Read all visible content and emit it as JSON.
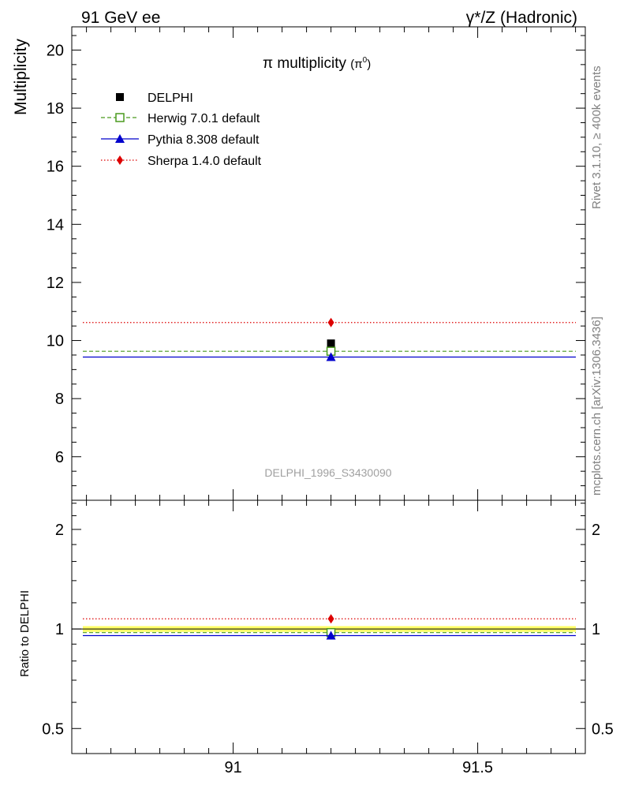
{
  "header": {
    "left": "91 GeV ee",
    "right": "γ*/Z (Hadronic)"
  },
  "side_text": {
    "top": "Rivet 3.1.10, ≥ 400k events",
    "bottom": "mcplots.cern.ch [arXiv:1306.3436]"
  },
  "watermark": "DELPHI_1996_S3430090",
  "colors": {
    "data": "#000000",
    "herwig": "#4a9a1e",
    "pythia": "#0000cc",
    "sherpa": "#dd0000",
    "band": "#ffff66"
  },
  "chart_data": [
    {
      "type": "scatter",
      "panel": "main",
      "title": "π multiplicity",
      "title_suffix": "(π",
      "title_sup": "0",
      "title_close": ")",
      "ylabel": "Multiplicity",
      "xlim": [
        90.67,
        91.72
      ],
      "ylim": [
        4.5,
        20.8
      ],
      "yticks": [
        6,
        8,
        10,
        12,
        14,
        16,
        18,
        20
      ],
      "ytick_labels": [
        "6",
        "8",
        "10",
        "12",
        "14",
        "16",
        "18",
        "20"
      ],
      "legend": [
        "DELPHI",
        "Herwig 7.0.1 default",
        "Pythia 8.308 default",
        "Sherpa 1.4.0 default"
      ],
      "series": [
        {
          "name": "DELPHI",
          "key": "data",
          "x": 91.2,
          "y": 9.9,
          "style": "square"
        },
        {
          "name": "Herwig 7.0.1 default",
          "key": "herwig",
          "x": 91.2,
          "y": 9.63,
          "xrange": [
            90.67,
            91.72
          ],
          "style": "open-square",
          "dash": "dashed"
        },
        {
          "name": "Pythia 8.308 default",
          "key": "pythia",
          "x": 91.2,
          "y": 9.43,
          "xrange": [
            90.67,
            91.72
          ],
          "style": "triangle",
          "dash": "solid"
        },
        {
          "name": "Sherpa 1.4.0 default",
          "key": "sherpa",
          "x": 91.2,
          "y": 10.62,
          "xrange": [
            90.67,
            91.72
          ],
          "style": "diamond",
          "dash": "dotted"
        }
      ]
    },
    {
      "type": "scatter",
      "panel": "ratio",
      "ylabel": "Ratio to DELPHI",
      "ylog": true,
      "xlim": [
        90.67,
        91.72
      ],
      "ylim": [
        0.42,
        2.45
      ],
      "yticks": [
        0.5,
        1,
        2
      ],
      "ytick_labels": [
        "0.5",
        "1",
        "2"
      ],
      "xticks": [
        91,
        91.5
      ],
      "xtick_labels": [
        "91",
        "91.5"
      ],
      "band": {
        "low": 0.98,
        "high": 1.02
      },
      "series": [
        {
          "name": "Herwig 7.0.1 default",
          "key": "herwig",
          "x": 91.2,
          "y": 0.975,
          "style": "open-square",
          "dash": "dashed"
        },
        {
          "name": "Pythia 8.308 default",
          "key": "pythia",
          "x": 91.2,
          "y": 0.955,
          "style": "triangle",
          "dash": "solid"
        },
        {
          "name": "Sherpa 1.4.0 default",
          "key": "sherpa",
          "x": 91.2,
          "y": 1.073,
          "style": "diamond",
          "dash": "dotted"
        }
      ]
    }
  ]
}
